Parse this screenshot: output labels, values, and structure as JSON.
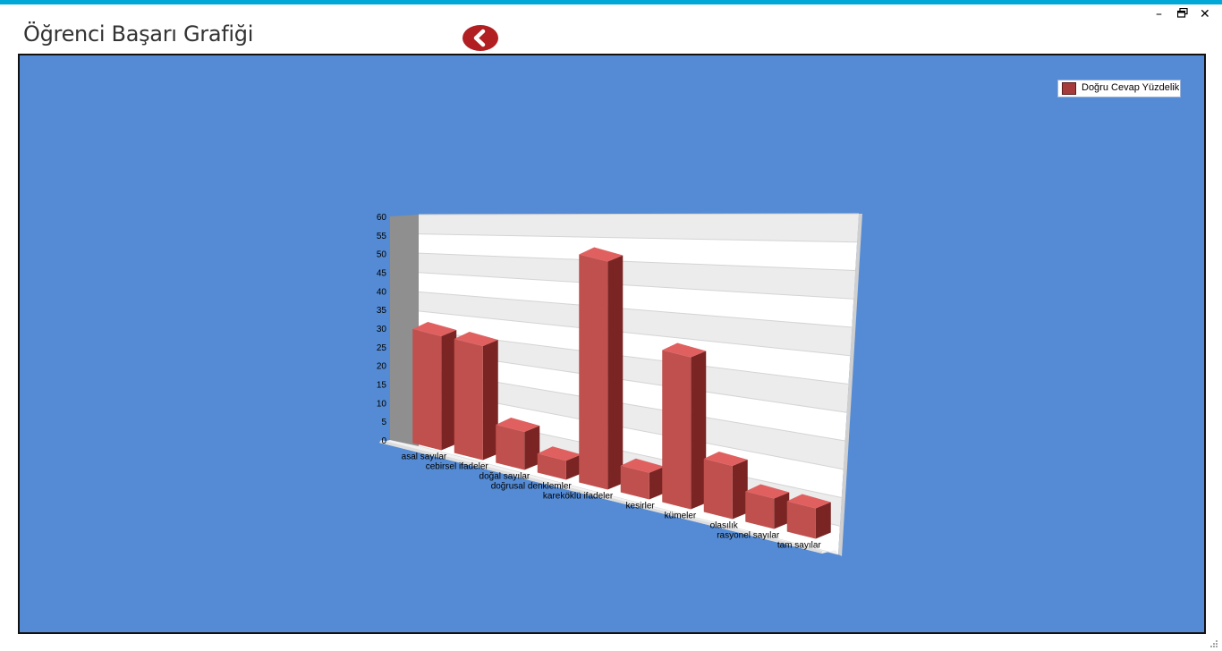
{
  "window": {
    "title": "Öğrenci Başarı Grafiği",
    "controls": {
      "minimize": "–",
      "restore": "🗗",
      "close": "✕"
    }
  },
  "back_button": {
    "icon": "chevron-left-icon",
    "color": "#b11f23"
  },
  "colors": {
    "accent_strip": "#00a8d8",
    "chart_background": "#548bd4",
    "bar_front": "#c0504d",
    "bar_side": "#7a2523",
    "bar_top": "#e06060"
  },
  "chart_data": {
    "type": "bar",
    "style": "3d",
    "categories": [
      "asal sayılar",
      "cebirsel ifadeler",
      "doğal sayılar",
      "doğrusal denklemler",
      "kareköklü ifadeler",
      "kesirler",
      "kümeler",
      "olasılık",
      "rasyonel sayılar",
      "tam sayılar"
    ],
    "series": [
      {
        "name": "Doğru Cevap Yüzdelik",
        "color": "#c0504d",
        "values": [
          30,
          30,
          10,
          5,
          60,
          7,
          40,
          14,
          8,
          8
        ]
      }
    ],
    "yticks": [
      0,
      5,
      10,
      15,
      20,
      25,
      30,
      35,
      40,
      45,
      50,
      55,
      60
    ],
    "ylim": [
      0,
      60
    ],
    "xlabel": "",
    "ylabel": "",
    "grid": true,
    "legend_position": "top-right"
  }
}
